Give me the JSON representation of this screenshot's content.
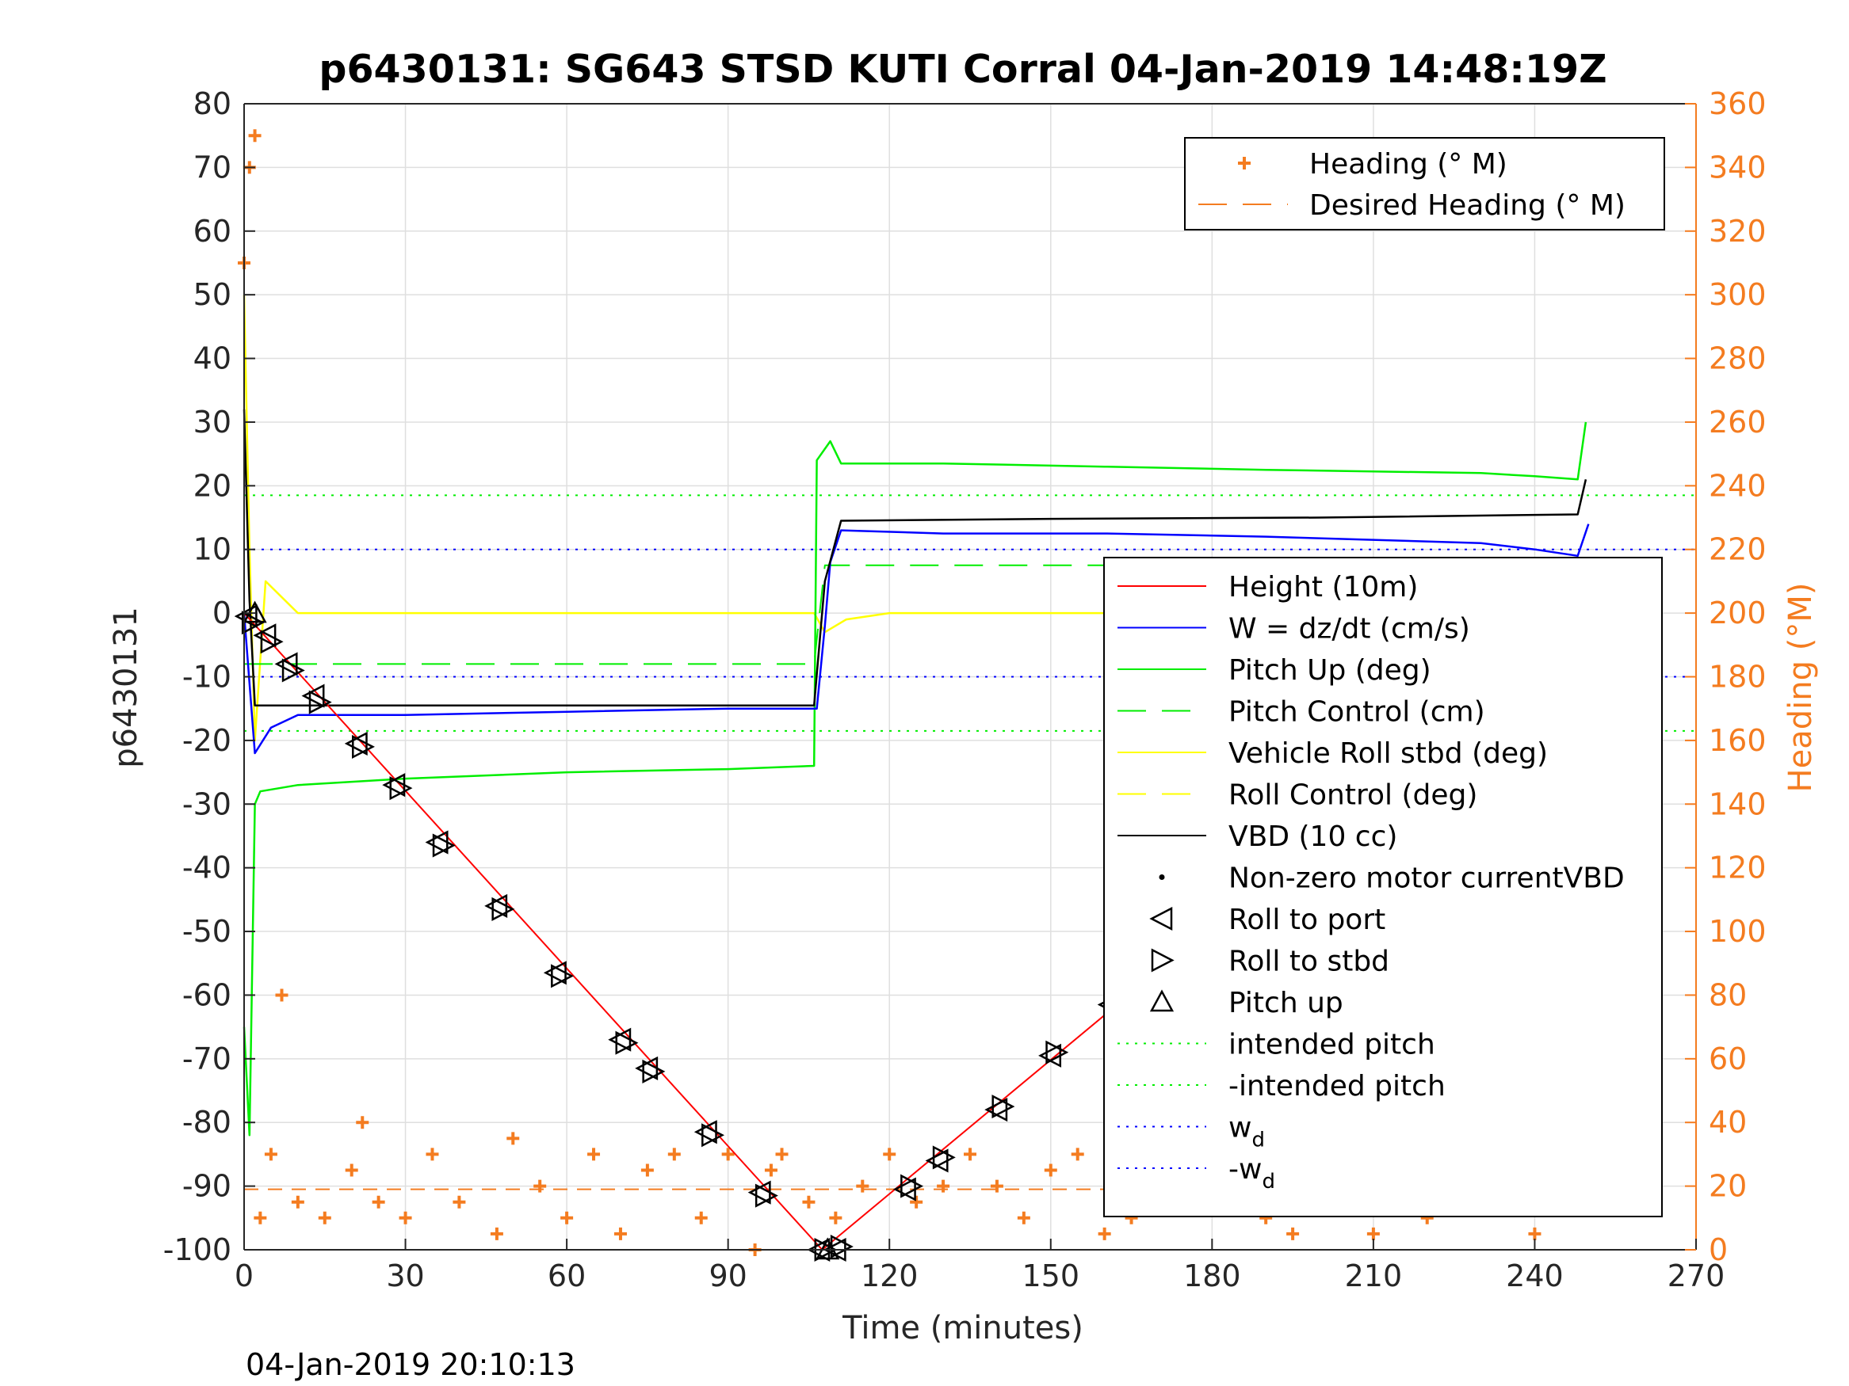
{
  "chart_data": {
    "type": "line",
    "title": "p6430131: SG643 STSD KUTI Corral 04-Jan-2019 14:48:19Z",
    "xlabel": "Time (minutes)",
    "ylabel": "p6430131",
    "y2label": "Heading (°M)",
    "timestamp": "04-Jan-2019 20:10:13",
    "xlim": [
      0,
      270
    ],
    "ylim": [
      -100,
      80
    ],
    "y2lim": [
      0,
      360
    ],
    "xticks": [
      "0",
      "30",
      "60",
      "90",
      "120",
      "150",
      "180",
      "210",
      "240",
      "270"
    ],
    "yticks": [
      "80",
      "70",
      "60",
      "50",
      "40",
      "30",
      "20",
      "10",
      "0",
      "-10",
      "-20",
      "-30",
      "-40",
      "-50",
      "-60",
      "-70",
      "-80",
      "-90",
      "-100"
    ],
    "y2ticks": [
      "360",
      "340",
      "320",
      "300",
      "280",
      "260",
      "240",
      "220",
      "200",
      "180",
      "160",
      "140",
      "120",
      "100",
      "80",
      "60",
      "40",
      "20",
      "0"
    ],
    "grid": true,
    "colors": {
      "height": "#ff0000",
      "w": "#0000ff",
      "pitch": "#00ee00",
      "roll": "#ffff00",
      "vbd": "#000000",
      "heading": "#f47c20"
    },
    "legend_right": {
      "placement": "top-right",
      "entries": [
        "Heading (° M)",
        "Desired Heading (° M)"
      ]
    },
    "legend_left": {
      "placement": "right",
      "entries": [
        "Height (10m)",
        "W = dz/dt (cm/s)",
        "Pitch Up (deg)",
        "Pitch Control (cm)",
        "Vehicle Roll stbd (deg)",
        "Roll Control (deg)",
        "VBD (10 cc)",
        "Non-zero motor currentVBD",
        "Roll to port",
        "Roll to stbd",
        "Pitch up",
        "intended pitch",
        "-intended pitch",
        "w",
        "-w"
      ],
      "subscript": "d"
    },
    "reference_lines": {
      "intended_pitch": 18.5,
      "w_d": 10,
      "pitch_control_dive": -8,
      "pitch_control_climb": 7.5
    },
    "series": [
      {
        "name": "Height (10m)",
        "x": [
          0,
          107.5,
          250
        ],
        "y": [
          0,
          -100,
          0
        ]
      },
      {
        "name": "W = dz/dt (cm/s)",
        "x": [
          0,
          2,
          5,
          10,
          30,
          60,
          90,
          106.5,
          108,
          109,
          111,
          130,
          160,
          190,
          230,
          240,
          248,
          250
        ],
        "y": [
          0,
          -22,
          -18,
          -16,
          -16,
          -15.5,
          -15,
          -15,
          -2,
          8,
          13,
          12.5,
          12.5,
          12,
          11,
          10,
          9,
          14
        ]
      },
      {
        "name": "Pitch Up (deg)",
        "x": [
          0,
          1,
          2,
          3,
          10,
          30,
          60,
          90,
          106,
          106.5,
          109,
          111,
          130,
          160,
          190,
          230,
          240,
          248,
          249.5
        ],
        "y": [
          -65,
          -82,
          -30,
          -28,
          -27,
          -26,
          -25,
          -24.5,
          -24,
          24,
          27,
          23.5,
          23.5,
          23,
          22.5,
          22,
          21.5,
          21,
          30
        ]
      },
      {
        "name": "Pitch Control (cm)",
        "x": [
          0,
          106,
          108,
          250
        ],
        "y": [
          -8,
          -8,
          7.5,
          7.5
        ]
      },
      {
        "name": "Vehicle Roll stbd (deg)",
        "x": [
          0,
          1,
          2,
          4,
          10,
          60,
          106,
          108,
          112,
          120,
          160,
          200,
          250
        ],
        "y": [
          50,
          10,
          -20,
          5,
          0,
          0,
          0,
          -3,
          -1,
          0,
          0,
          0,
          0
        ]
      },
      {
        "name": "VBD (10 cc)",
        "x": [
          0,
          1,
          2,
          100,
          106,
          108,
          111,
          150,
          200,
          248,
          249.5
        ],
        "y": [
          32,
          2,
          -14.5,
          -14.5,
          -14.5,
          5,
          14.5,
          14.8,
          15,
          15.5,
          21
        ]
      },
      {
        "name": "Roll to port",
        "x": [
          0.5,
          4,
          8,
          13,
          21,
          28,
          36,
          47,
          58,
          70,
          75,
          86,
          96,
          107,
          110,
          123,
          129,
          140,
          150,
          161,
          167,
          193,
          199,
          205,
          212,
          218,
          221,
          226,
          231,
          235,
          244,
          248
        ],
        "y": [
          -0.5,
          -3.5,
          -8,
          -13,
          -20.5,
          -27,
          -36,
          -46,
          -56.5,
          -67,
          -71.5,
          -81.5,
          -91,
          -100,
          -100,
          -90.5,
          -86,
          -78,
          -69.5,
          -61.5,
          -57,
          -38,
          -34,
          -30,
          -25,
          -20,
          -17.5,
          -13.5,
          -11,
          -8.5,
          -4,
          -1
        ]
      },
      {
        "name": "Roll to stbd",
        "x": [
          1.5,
          5,
          9,
          14,
          22,
          29,
          37,
          48,
          59,
          71,
          76,
          87,
          97,
          108,
          111,
          124,
          130,
          141,
          151,
          162,
          168,
          194,
          200,
          206,
          213,
          219,
          222,
          227,
          232,
          236
        ],
        "y": [
          -1.5,
          -4.5,
          -9,
          -14,
          -21,
          -27.5,
          -36.5,
          -46.5,
          -57,
          -67.5,
          -72,
          -82,
          -91.5,
          -100,
          -99.5,
          -90,
          -85.5,
          -77.5,
          -69,
          -61,
          -56.5,
          -37.5,
          -33.5,
          -29.5,
          -24.5,
          -19.5,
          -17,
          -13,
          -10.5,
          -8
        ]
      },
      {
        "name": "Pitch up",
        "x": [
          2,
          108.5
        ],
        "y": [
          0,
          -100
        ]
      },
      {
        "name": "Heading (° M)",
        "axis": "right",
        "x": [
          0,
          1,
          2,
          3,
          5,
          7,
          10,
          15,
          20,
          22,
          25,
          30,
          35,
          40,
          47,
          50,
          55,
          60,
          65,
          70,
          75,
          80,
          85,
          90,
          95,
          98,
          100,
          105,
          110,
          115,
          120,
          125,
          130,
          135,
          140,
          145,
          150,
          155,
          160,
          165,
          170,
          175,
          180,
          185,
          190,
          195,
          200,
          205,
          210,
          215,
          220,
          225,
          230,
          235,
          240,
          245,
          250
        ],
        "y": [
          310,
          340,
          350,
          10,
          30,
          80,
          15,
          10,
          25,
          40,
          15,
          10,
          30,
          15,
          5,
          35,
          20,
          10,
          30,
          5,
          25,
          30,
          10,
          30,
          0,
          25,
          30,
          15,
          10,
          20,
          30,
          15,
          20,
          30,
          20,
          10,
          25,
          30,
          5,
          10,
          20,
          15,
          20,
          15,
          10,
          5,
          30,
          15,
          5,
          35,
          10,
          30,
          15,
          40,
          5,
          20,
          25
        ]
      },
      {
        "name": "Desired Heading (° M)",
        "axis": "right",
        "x": [
          0,
          250
        ],
        "y": [
          19,
          19
        ]
      }
    ]
  }
}
